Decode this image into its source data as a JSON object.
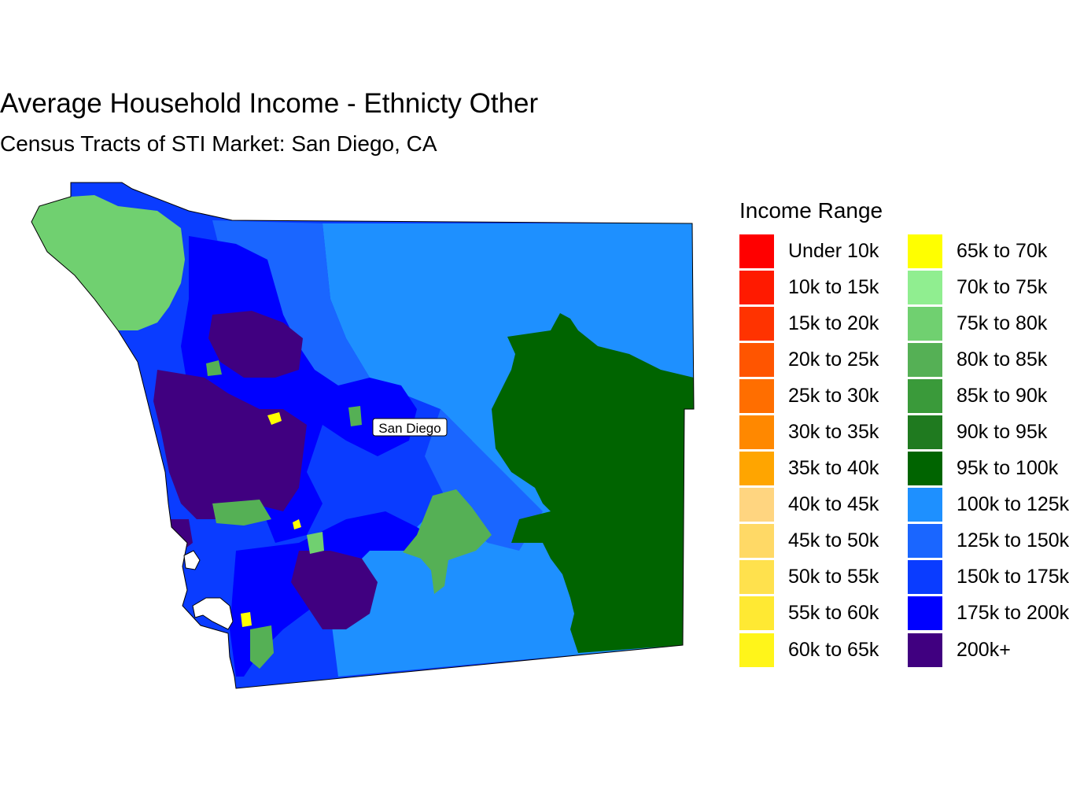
{
  "title": "Average Household Income - Ethnicty Other",
  "subtitle": "Census Tracts of STI Market: San Diego, CA",
  "map": {
    "city_label": "San Diego",
    "colors": {
      "background": "#ffffff",
      "outline": "#000000",
      "light_green": "#70d070",
      "mid_green": "#55b055",
      "dark_green": "#006400",
      "light_blue": "#1e90ff",
      "mid_blue": "#1a66ff",
      "bright_blue": "#0a3cff",
      "deep_blue": "#0000ff",
      "purple": "#400080",
      "yellow": "#ffff00"
    }
  },
  "legend": {
    "title": "Income Range",
    "items": [
      {
        "label": "Under 10k",
        "color": "#ff0000"
      },
      {
        "label": "10k to 15k",
        "color": "#ff1a00"
      },
      {
        "label": "15k to 20k",
        "color": "#ff3300"
      },
      {
        "label": "20k to 25k",
        "color": "#ff5500"
      },
      {
        "label": "25k to 30k",
        "color": "#ff6e00"
      },
      {
        "label": "30k to 35k",
        "color": "#ff8800"
      },
      {
        "label": "35k to 40k",
        "color": "#ffa500"
      },
      {
        "label": "40k to 45k",
        "color": "#ffd580"
      },
      {
        "label": "45k to 50k",
        "color": "#ffd966"
      },
      {
        "label": "50k to 55k",
        "color": "#ffe14d"
      },
      {
        "label": "55k to 60k",
        "color": "#ffe933"
      },
      {
        "label": "60k to 65k",
        "color": "#fff51a"
      },
      {
        "label": "65k to 70k",
        "color": "#ffff00"
      },
      {
        "label": "70k to 75k",
        "color": "#90ee90"
      },
      {
        "label": "75k to 80k",
        "color": "#70d070"
      },
      {
        "label": "80k to 85k",
        "color": "#55b055"
      },
      {
        "label": "85k to 90k",
        "color": "#3a9a3a"
      },
      {
        "label": "90k to 95k",
        "color": "#1f7a1f"
      },
      {
        "label": "95k to 100k",
        "color": "#006400"
      },
      {
        "label": "100k to 125k",
        "color": "#1e90ff"
      },
      {
        "label": "125k to 150k",
        "color": "#1a66ff"
      },
      {
        "label": "150k to 175k",
        "color": "#0a3cff"
      },
      {
        "label": "175k to 200k",
        "color": "#0000ff"
      },
      {
        "label": "200k+",
        "color": "#400080"
      }
    ]
  }
}
